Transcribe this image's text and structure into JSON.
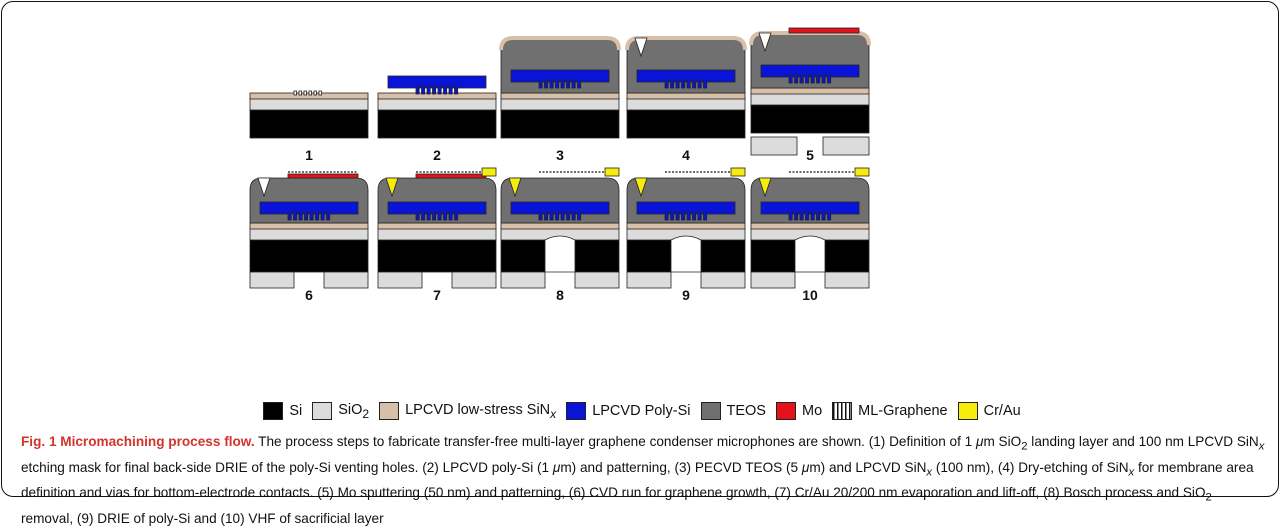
{
  "figure": {
    "steps": [
      "1",
      "2",
      "3",
      "4",
      "5",
      "6",
      "7",
      "8",
      "9",
      "10"
    ]
  },
  "legend": [
    {
      "label_html": "Si",
      "color": "#000000",
      "icon": "si-swatch"
    },
    {
      "label_html": "SiO<sub>2</sub>",
      "color": "#dcdcdc",
      "icon": "sio2-swatch"
    },
    {
      "label_html": "LPCVD low-stress SiN<sub><i>x</i></sub>",
      "color": "#d8bfa8",
      "icon": "sin-swatch"
    },
    {
      "label_html": "LPCVD Poly-Si",
      "color": "#0a14d8",
      "icon": "polysi-swatch"
    },
    {
      "label_html": "TEOS",
      "color": "#707070",
      "icon": "teos-swatch"
    },
    {
      "label_html": "Mo",
      "color": "#e3121b",
      "icon": "mo-swatch"
    },
    {
      "label_html": "ML-Graphene",
      "color": "pattern",
      "icon": "graphene-swatch"
    },
    {
      "label_html": "Cr/Au",
      "color": "#f7ec0c",
      "icon": "crau-swatch"
    }
  ],
  "caption": {
    "title": "Fig. 1 Micromachining process flow.",
    "body_html": " The process steps to fabricate transfer-free multi-layer graphene condenser microphones are shown. (1) Definition of 1 <i>μ</i>m SiO<sub>2</sub> landing layer and 100 nm LPCVD SiN<sub><i>x</i></sub> etching mask for final back-side DRIE of the poly-Si venting holes. (2) LPCVD poly-Si (1 <i>μ</i>m) and patterning, (3) PECVD TEOS (5 <i>μ</i>m) and LPCVD SiN<sub><i>x</i></sub> (100 nm), (4) Dry-etching of SiN<sub><i>x</i></sub> for membrane area definition and vias for bottom-electrode contacts. (5) Mo sputtering (50 nm) and patterning, (6) CVD run for graphene growth, (7) Cr/Au 20/200 nm evaporation and lift-off, (8) Bosch process and SiO<sub>2</sub> removal, (9) DRIE of poly-Si and (10) VHF of sacrificial layer"
  },
  "colors": {
    "si": "#000000",
    "sio2": "#dcdcdc",
    "sin": "#d8bfa8",
    "polysi": "#0a14d8",
    "teos": "#707070",
    "mo": "#e3121b",
    "crau": "#f7ec0c",
    "caption_title": "#d2342c"
  }
}
